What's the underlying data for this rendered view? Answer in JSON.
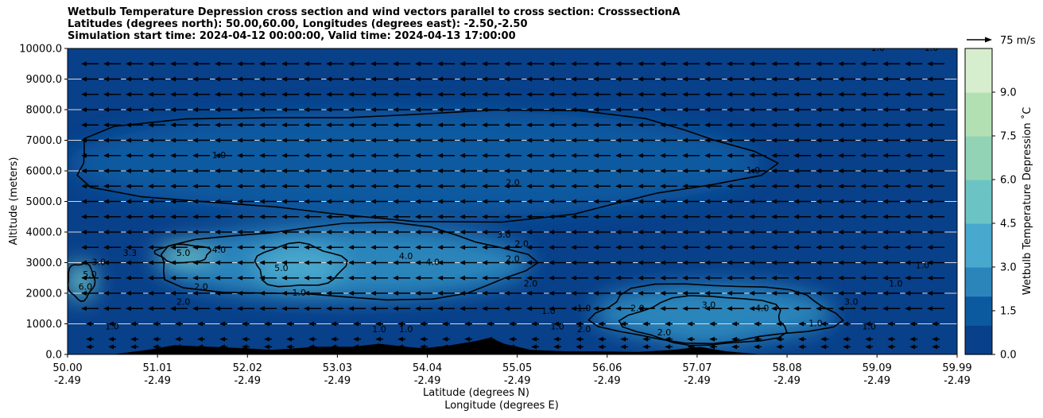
{
  "title_lines": [
    "Wetbulb Temperature Depression cross section and wind vectors parallel to cross section: CrosssectionA",
    "Latitudes (degrees north): 50.00,60.00, Longitudes (degrees east): -2.50,-2.50",
    "Simulation start time: 2024-04-12 00:00:00, Valid time: 2024-04-13 17:00:00"
  ],
  "colors": {
    "dark_blue": "#08478d",
    "mid_blue": "#1d6fae",
    "light_blue": "#41a3c9",
    "teal": "#72c6c4",
    "pale_green": "#a8dca7",
    "terrain": "#000000"
  },
  "chart_data": {
    "type": "heatmap",
    "subtype": "filled contour cross section with wind vectors",
    "xlabel": "Latitude (degrees N)",
    "xlabel2": "Longitude (degrees E)",
    "ylabel": "Altitude (meters)",
    "x_ticks": [
      {
        "lat": "50.00",
        "lon": "-2.49"
      },
      {
        "lat": "51.01",
        "lon": "-2.49"
      },
      {
        "lat": "52.02",
        "lon": "-2.49"
      },
      {
        "lat": "53.03",
        "lon": "-2.49"
      },
      {
        "lat": "54.04",
        "lon": "-2.49"
      },
      {
        "lat": "55.05",
        "lon": "-2.49"
      },
      {
        "lat": "56.06",
        "lon": "-2.49"
      },
      {
        "lat": "57.07",
        "lon": "-2.49"
      },
      {
        "lat": "58.08",
        "lon": "-2.49"
      },
      {
        "lat": "59.09",
        "lon": "-2.49"
      },
      {
        "lat": "59.99",
        "lon": "-2.49"
      }
    ],
    "xlim": [
      50.0,
      59.99
    ],
    "y_ticks": [
      "0.0",
      "1000.0",
      "2000.0",
      "3000.0",
      "4000.0",
      "5000.0",
      "6000.0",
      "7000.0",
      "8000.0",
      "9000.0",
      "10000.0"
    ],
    "ylim": [
      0,
      10000
    ],
    "grid": "horizontal",
    "colorbar": {
      "label": "Wetbulb Temperature Depression ˚C",
      "ticks": [
        "0.0",
        "1.5",
        "3.0",
        "4.5",
        "6.0",
        "7.5",
        "9.0"
      ],
      "range": [
        0,
        10.5
      ],
      "levels": 21
    },
    "quiver_key": {
      "label": "75 m/s"
    },
    "contour_labels": [
      {
        "text": "1.0",
        "lat": 51.7,
        "alt": 6500
      },
      {
        "text": "2.0",
        "lat": 55.0,
        "alt": 5600
      },
      {
        "text": "3.0",
        "lat": 54.9,
        "alt": 3900
      },
      {
        "text": "2.0",
        "lat": 55.1,
        "alt": 3600
      },
      {
        "text": "2.0",
        "lat": 55.0,
        "alt": 3100
      },
      {
        "text": "3.3",
        "lat": 50.7,
        "alt": 3300
      },
      {
        "text": "5.0",
        "lat": 51.3,
        "alt": 3300
      },
      {
        "text": "4.0",
        "lat": 51.7,
        "alt": 3400
      },
      {
        "text": "3.0",
        "lat": 50.35,
        "alt": 3000
      },
      {
        "text": "5.0",
        "lat": 50.25,
        "alt": 2600
      },
      {
        "text": "6.0",
        "lat": 50.2,
        "alt": 2200
      },
      {
        "text": "2.0",
        "lat": 51.5,
        "alt": 2200
      },
      {
        "text": "5.0",
        "lat": 52.4,
        "alt": 2800
      },
      {
        "text": "4.0",
        "lat": 53.8,
        "alt": 3200
      },
      {
        "text": "4.0",
        "lat": 54.1,
        "alt": 3000
      },
      {
        "text": "1.0",
        "lat": 52.6,
        "alt": 2000
      },
      {
        "text": "2.0",
        "lat": 51.3,
        "alt": 1700
      },
      {
        "text": "1.0",
        "lat": 50.5,
        "alt": 900
      },
      {
        "text": "1.0",
        "lat": 53.5,
        "alt": 800
      },
      {
        "text": "2.0",
        "lat": 55.2,
        "alt": 2300
      },
      {
        "text": "1.0",
        "lat": 55.8,
        "alt": 1500
      },
      {
        "text": "2.0",
        "lat": 56.4,
        "alt": 1500
      },
      {
        "text": "3.0",
        "lat": 57.2,
        "alt": 1600
      },
      {
        "text": "4.0",
        "lat": 57.8,
        "alt": 1500
      },
      {
        "text": "3.0",
        "lat": 58.8,
        "alt": 1700
      },
      {
        "text": "1.0",
        "lat": 58.4,
        "alt": 1000
      },
      {
        "text": "1.0",
        "lat": 59.0,
        "alt": 900
      },
      {
        "text": "1.0",
        "lat": 59.3,
        "alt": 2300
      },
      {
        "text": "1.0",
        "lat": 59.6,
        "alt": 2900
      },
      {
        "text": "1.0",
        "lat": 57.7,
        "alt": 6000
      },
      {
        "text": "1.0",
        "lat": 59.1,
        "alt": 10000
      },
      {
        "text": "1.0",
        "lat": 59.7,
        "alt": 10000
      },
      {
        "text": "1.0",
        "lat": 55.4,
        "alt": 1400
      },
      {
        "text": "1.0",
        "lat": 55.5,
        "alt": 900
      },
      {
        "text": "2.0",
        "lat": 55.8,
        "alt": 800
      },
      {
        "text": "2.0",
        "lat": 56.7,
        "alt": 700
      },
      {
        "text": "1.0",
        "lat": 53.8,
        "alt": 800
      }
    ],
    "terrain": [
      [
        50.0,
        0
      ],
      [
        50.5,
        0
      ],
      [
        50.9,
        150
      ],
      [
        51.2,
        300
      ],
      [
        51.6,
        250
      ],
      [
        52.0,
        200
      ],
      [
        52.3,
        150
      ],
      [
        52.8,
        250
      ],
      [
        53.2,
        250
      ],
      [
        53.5,
        350
      ],
      [
        53.8,
        250
      ],
      [
        54.0,
        200
      ],
      [
        54.3,
        300
      ],
      [
        54.6,
        450
      ],
      [
        54.75,
        550
      ],
      [
        54.9,
        350
      ],
      [
        55.2,
        150
      ],
      [
        55.6,
        100
      ],
      [
        56.0,
        100
      ],
      [
        56.4,
        80
      ],
      [
        56.8,
        150
      ],
      [
        57.1,
        250
      ],
      [
        57.4,
        100
      ],
      [
        57.8,
        0
      ],
      [
        59.99,
        0
      ]
    ],
    "wind": {
      "direction": "toward decreasing latitude",
      "levels_m": [
        250,
        500,
        1000,
        1500,
        2000,
        2500,
        3000,
        3500,
        4000,
        4500,
        5000,
        5500,
        6000,
        6500,
        7000,
        7500,
        8000,
        8500,
        9000,
        9500
      ],
      "lat_spacing": 0.25
    },
    "field_regions": [
      {
        "level": 0.6,
        "lat_range": [
          50.0,
          59.99
        ],
        "alt_range": [
          0,
          10000
        ]
      },
      {
        "level": 1.8,
        "lat_range": [
          50.0,
          57.8
        ],
        "alt_range": [
          4500,
          8000
        ]
      },
      {
        "level": 2.8,
        "lat_range": [
          51.0,
          55.2
        ],
        "alt_range": [
          1800,
          4200
        ]
      },
      {
        "level": 3.6,
        "lat_range": [
          52.1,
          53.1
        ],
        "alt_range": [
          2200,
          3600
        ]
      },
      {
        "level": 4.5,
        "lat_range": [
          51.0,
          51.6
        ],
        "alt_range": [
          3000,
          3600
        ]
      },
      {
        "level": 3.2,
        "lat_range": [
          56.3,
          58.1
        ],
        "alt_range": [
          300,
          1900
        ]
      },
      {
        "level": 2.4,
        "lat_range": [
          55.9,
          58.6
        ],
        "alt_range": [
          400,
          2300
        ]
      },
      {
        "level": 5.5,
        "lat_range": [
          50.0,
          50.3
        ],
        "alt_range": [
          1800,
          3000
        ]
      }
    ]
  }
}
